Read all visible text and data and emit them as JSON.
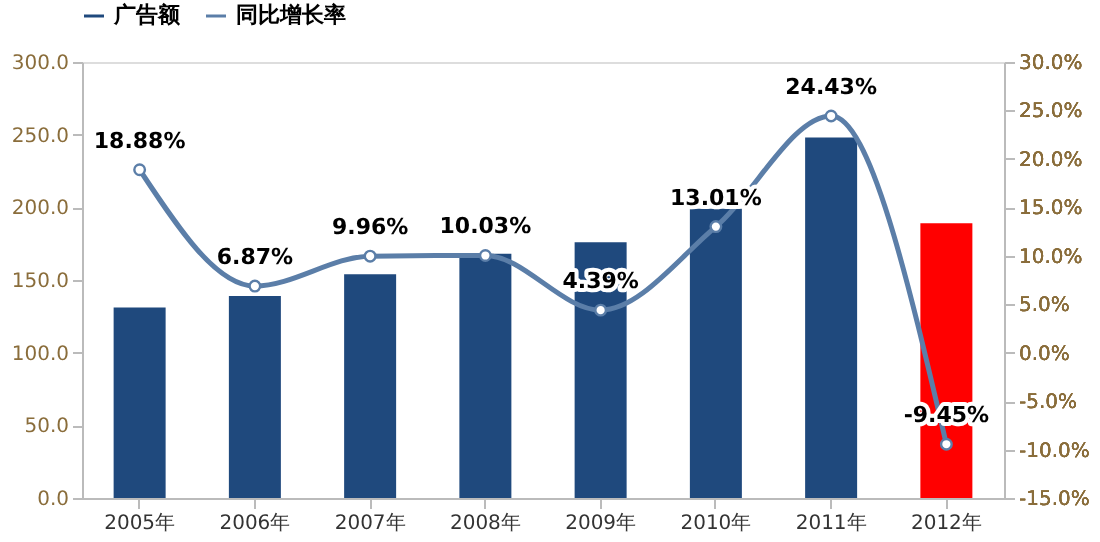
{
  "chart_data": {
    "type": "bar",
    "categories": [
      "2005年",
      "2006年",
      "2007年",
      "2008年",
      "2009年",
      "2010年",
      "2011年",
      "2012年"
    ],
    "series": [
      {
        "name": "广告额",
        "color": "#1f497d",
        "colors": [
          "#1f497d",
          "#1f497d",
          "#1f497d",
          "#1f497d",
          "#1f497d",
          "#1f497d",
          "#1f497d",
          "#ff0000"
        ],
        "values": [
          131,
          139,
          154,
          168,
          176,
          199,
          248,
          189
        ]
      },
      {
        "name": "同比增长率",
        "type": "line",
        "axis": "y2",
        "color": "#5b7ea8",
        "marker": "circle",
        "values": [
          18.88,
          6.87,
          9.96,
          10.03,
          4.39,
          13.01,
          24.43,
          -9.45
        ],
        "value_labels": [
          "18.88%",
          "6.87%",
          "9.96%",
          "10.03%",
          "4.39%",
          "13.01%",
          "24.43%",
          "-9.45%"
        ]
      }
    ],
    "ylim": [
      0,
      300
    ],
    "yticks": [
      {
        "value": 0,
        "label": "0.0"
      },
      {
        "value": 50,
        "label": "50.0"
      },
      {
        "value": 100,
        "label": "100.0"
      },
      {
        "value": 150,
        "label": "150.0"
      },
      {
        "value": 200,
        "label": "200.0"
      },
      {
        "value": 250,
        "label": "250.0"
      },
      {
        "value": 300,
        "label": "300.0"
      }
    ],
    "y2lim": [
      -15,
      30
    ],
    "y2ticks": [
      {
        "value": -15,
        "label": "-15.0%"
      },
      {
        "value": -10,
        "label": "-10.0%"
      },
      {
        "value": -5,
        "label": "-5.0%"
      },
      {
        "value": 0,
        "label": "0.0%"
      },
      {
        "value": 5,
        "label": "5.0%"
      },
      {
        "value": 10,
        "label": "10.0%"
      },
      {
        "value": 15,
        "label": "15.0%"
      },
      {
        "value": 20,
        "label": "20.0%"
      },
      {
        "value": 25,
        "label": "25.0%"
      },
      {
        "value": 30,
        "label": "30.0%"
      }
    ],
    "grid": false,
    "legend": "top"
  }
}
